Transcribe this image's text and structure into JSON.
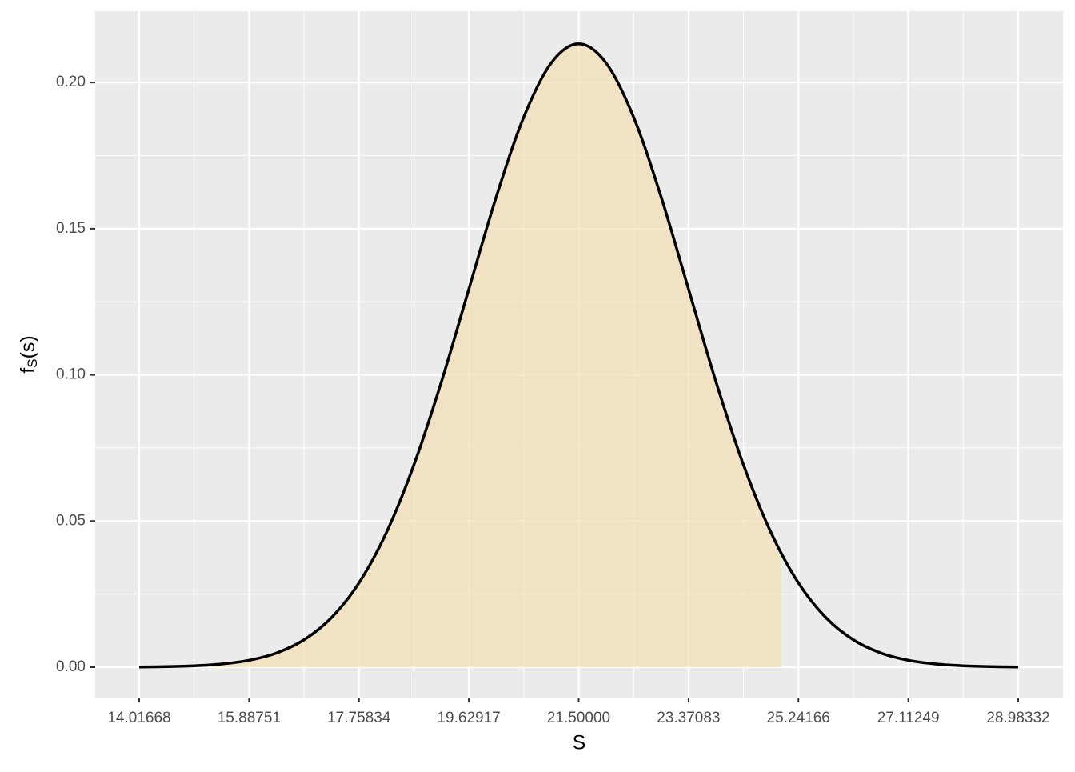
{
  "chart_data": {
    "type": "area",
    "x_label": "S",
    "y_label": [
      "f",
      "S",
      "(s)"
    ],
    "x": [
      14.01668,
      14.48439,
      14.9521,
      15.4198,
      15.88751,
      16.35522,
      16.82293,
      17.29063,
      17.75834,
      18.22605,
      18.69376,
      19.16146,
      19.62917,
      20.09688,
      20.56459,
      21.03229,
      21.5,
      21.96771,
      22.43541,
      22.90312,
      23.37083,
      23.83854,
      24.30624,
      24.77395,
      25.24166,
      25.70937,
      26.17707,
      26.64478,
      27.11249,
      27.5802,
      28.0479,
      28.51561,
      28.98332
    ],
    "values": [
      7e-05,
      0.00019,
      0.00047,
      0.00108,
      0.00237,
      0.00486,
      0.00937,
      0.01697,
      0.02886,
      0.04612,
      0.06923,
      0.09763,
      0.12934,
      0.16096,
      0.18819,
      0.20668,
      0.21324,
      0.20668,
      0.18819,
      0.16096,
      0.12934,
      0.09763,
      0.06923,
      0.04612,
      0.02886,
      0.01697,
      0.00937,
      0.00486,
      0.00237,
      0.00108,
      0.00047,
      0.00019,
      7e-05
    ],
    "shade_range": [
      14.01668,
      24.95
    ],
    "fill_color": "#f5deb3",
    "line_color": "#000000",
    "xlim": [
      13.2677,
      29.746
    ],
    "ylim": [
      -0.0104,
      0.2244
    ],
    "xticks": [
      14.01668,
      15.88751,
      17.75834,
      19.62917,
      {
        "value": 21.5,
        "label": "21.50000"
      },
      23.37083,
      25.24166,
      27.11249,
      28.98332
    ],
    "yticks": [
      {
        "value": 0,
        "label": "0.00"
      },
      0.05,
      {
        "value": 0.1,
        "label": "0.10"
      },
      0.15,
      {
        "value": 0.2,
        "label": "0.20"
      }
    ],
    "grid": true,
    "minor_grid": true
  }
}
